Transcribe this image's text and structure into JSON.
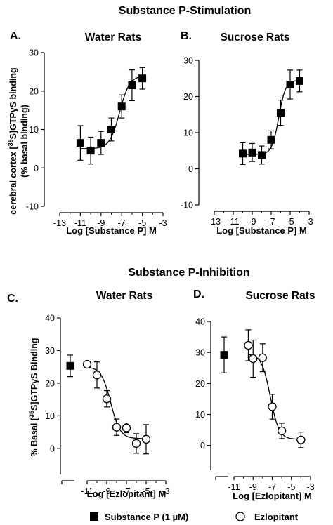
{
  "headings": {
    "stimulation": "Substance P-Stimulation",
    "inhibition": "Substance P-Inhibition"
  },
  "legend": {
    "filled_square": "Substance P (1 µM)",
    "open_circle": "Ezlopitant"
  },
  "y_label_stim": {
    "line1": "cerebral cortex [",
    "sup": "35",
    "line1_end": "S]GTPγS binding",
    "line2": "(% basal binding)"
  },
  "y_label_inhib": {
    "start": "% Basal [",
    "sup": "35",
    "end": "S]GTPγS Binding"
  },
  "chart_data": [
    {
      "panel": "A.",
      "title": "Water Rats",
      "type": "scatter",
      "xlabel": "Log [Substance P] M",
      "xlim": [
        -13,
        -3
      ],
      "xticks": [
        -13,
        -11,
        -9,
        -7,
        -5,
        -3
      ],
      "ylim": [
        -10,
        30
      ],
      "yticks": [
        -10,
        0,
        10,
        20,
        30
      ],
      "series": [
        {
          "marker": "filled-square",
          "x": [
            -11,
            -10,
            -9,
            -8,
            -7,
            -6,
            -5
          ],
          "y": [
            6.5,
            4.5,
            6.5,
            10,
            16,
            21.5,
            23.3
          ],
          "err": [
            4.5,
            3.5,
            3,
            3,
            3,
            4,
            2.8
          ]
        }
      ],
      "curve": {
        "bottom": 5,
        "top": 24,
        "logEC50": -7.2,
        "hill": 0.9,
        "from": -11,
        "to": -5
      }
    },
    {
      "panel": "B.",
      "title": "Sucrose Rats",
      "type": "scatter",
      "xlabel": "Log [Substance P] M",
      "xlim": [
        -13,
        -3
      ],
      "xticks": [
        -13,
        -11,
        -9,
        -7,
        -5,
        -3
      ],
      "ylim": [
        -10,
        30
      ],
      "yticks": [
        -10,
        0,
        10,
        20,
        30
      ],
      "series": [
        {
          "marker": "filled-square",
          "x": [
            -10,
            -9,
            -8,
            -7,
            -6,
            -5,
            -4
          ],
          "y": [
            4.2,
            4.5,
            3.8,
            8,
            15.5,
            23.3,
            24.3
          ],
          "err": [
            3,
            2.5,
            2.5,
            2.5,
            3.5,
            4,
            3
          ]
        }
      ],
      "curve": {
        "bottom": 4,
        "top": 24.5,
        "logEC50": -6.2,
        "hill": 1.2,
        "from": -10,
        "to": -4
      }
    },
    {
      "panel": "C.",
      "title": "Water Rats",
      "type": "scatter",
      "xlabel": "Log [Ezlopitant] M",
      "xlim": [
        -11,
        -3
      ],
      "xticks": [
        -11,
        -9,
        -7,
        -5,
        -3
      ],
      "ylim": [
        -8,
        40
      ],
      "yticks": [
        0,
        10,
        20,
        30,
        40
      ],
      "reference": {
        "marker": "filled-square",
        "y": 25.3,
        "err": 3.3
      },
      "series": [
        {
          "marker": "open-circle",
          "x": [
            -11,
            -10,
            -9,
            -8,
            -7,
            -6,
            -5
          ],
          "y": [
            25.8,
            22.5,
            15.2,
            6.5,
            6.3,
            1.5,
            2.8
          ],
          "err": [
            0,
            4,
            2.5,
            2.5,
            1.5,
            3,
            4.5
          ]
        }
      ],
      "curve": {
        "bottom": 3,
        "top": 25,
        "logEC50": -8.6,
        "hill": 0.9,
        "from": -11,
        "to": -5
      }
    },
    {
      "panel": "D.",
      "title": "Sucrose Rats",
      "type": "scatter",
      "xlabel": "Log [Ezlopitant] M",
      "xlim": [
        -11,
        -3
      ],
      "xticks": [
        -11,
        -9,
        -7,
        -5,
        -3
      ],
      "ylim": [
        -8,
        40
      ],
      "yticks": [
        0,
        10,
        20,
        30,
        40
      ],
      "reference": {
        "marker": "filled-square",
        "y": 29.2,
        "err": 5.8
      },
      "series": [
        {
          "marker": "open-circle",
          "x": [
            -9.5,
            -9,
            -8,
            -7,
            -6,
            -4
          ],
          "y": [
            32.3,
            28,
            28.3,
            12.5,
            4.7,
            1.8
          ],
          "err": [
            5,
            6,
            4.5,
            4,
            2.5,
            2.5
          ]
        }
      ],
      "curve": {
        "bottom": 2,
        "top": 29.5,
        "logEC50": -7.2,
        "hill": 0.95,
        "from": -9.5,
        "to": -4
      }
    }
  ]
}
